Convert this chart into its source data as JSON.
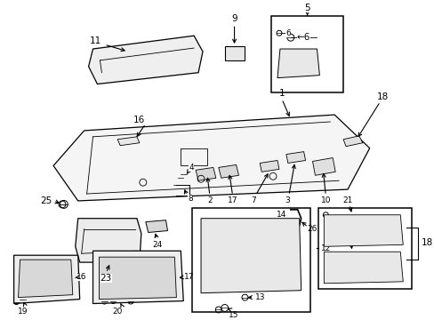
{
  "bg": "#ffffff",
  "lc": "#000000",
  "fig_w": 4.89,
  "fig_h": 3.6,
  "dpi": 100,
  "label_fs": 7.5,
  "small_fs": 6.5
}
